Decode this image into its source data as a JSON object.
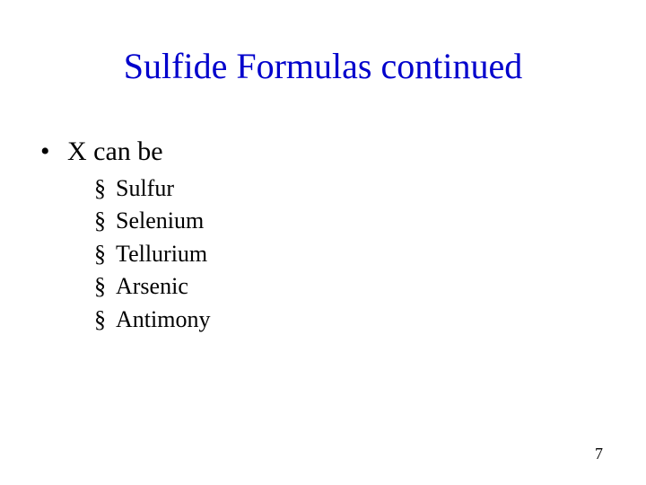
{
  "title": {
    "text": "Sulfide Formulas continued",
    "color": "#0000cc",
    "fontsize_pt": 40
  },
  "body": {
    "text_color": "#000000",
    "level1_fontsize_pt": 30,
    "level2_fontsize_pt": 26,
    "level1_bullet_glyph": "•",
    "level2_bullet_glyph": "§",
    "items": [
      {
        "label": "X can be",
        "children": [
          {
            "label": "Sulfur"
          },
          {
            "label": "Selenium"
          },
          {
            "label": "Tellurium"
          },
          {
            "label": "Arsenic"
          },
          {
            "label": "Antimony"
          }
        ]
      }
    ]
  },
  "page_number": "7",
  "background_color": "#ffffff"
}
